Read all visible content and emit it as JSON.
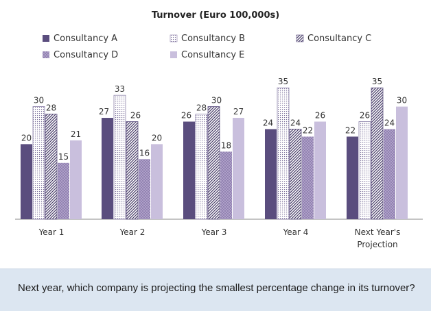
{
  "chart_data": {
    "type": "bar",
    "title": "Turnover (Euro 100,000s)",
    "categories": [
      "Year 1",
      "Year 2",
      "Year 3",
      "Year 4",
      "Next Year's Projection"
    ],
    "series": [
      {
        "name": "Consultancy A",
        "values": [
          20,
          27,
          26,
          24,
          22
        ]
      },
      {
        "name": "Consultancy B",
        "values": [
          30,
          33,
          28,
          35,
          26
        ]
      },
      {
        "name": "Consultancy C",
        "values": [
          28,
          26,
          30,
          24,
          35
        ]
      },
      {
        "name": "Consultancy D",
        "values": [
          15,
          16,
          18,
          22,
          24
        ]
      },
      {
        "name": "Consultancy E",
        "values": [
          21,
          20,
          27,
          26,
          30
        ]
      }
    ],
    "series_style": [
      {
        "fill": "#5a4d7e",
        "pattern": "solid"
      },
      {
        "fill": "#ffffff",
        "pattern": "dots",
        "stroke": "#8a7fa8"
      },
      {
        "fill": "#ffffff",
        "pattern": "diagonal",
        "stroke": "#5a4d7e"
      },
      {
        "fill": "#a998c4",
        "pattern": "grid"
      },
      {
        "fill": "#c9bfdd",
        "pattern": "solid"
      }
    ],
    "ylim": [
      0,
      40
    ],
    "grid": false,
    "legend": "top",
    "data_labels": true
  },
  "question": {
    "text": "Next year, which company is projecting the smallest percentage change in its turnover?"
  }
}
